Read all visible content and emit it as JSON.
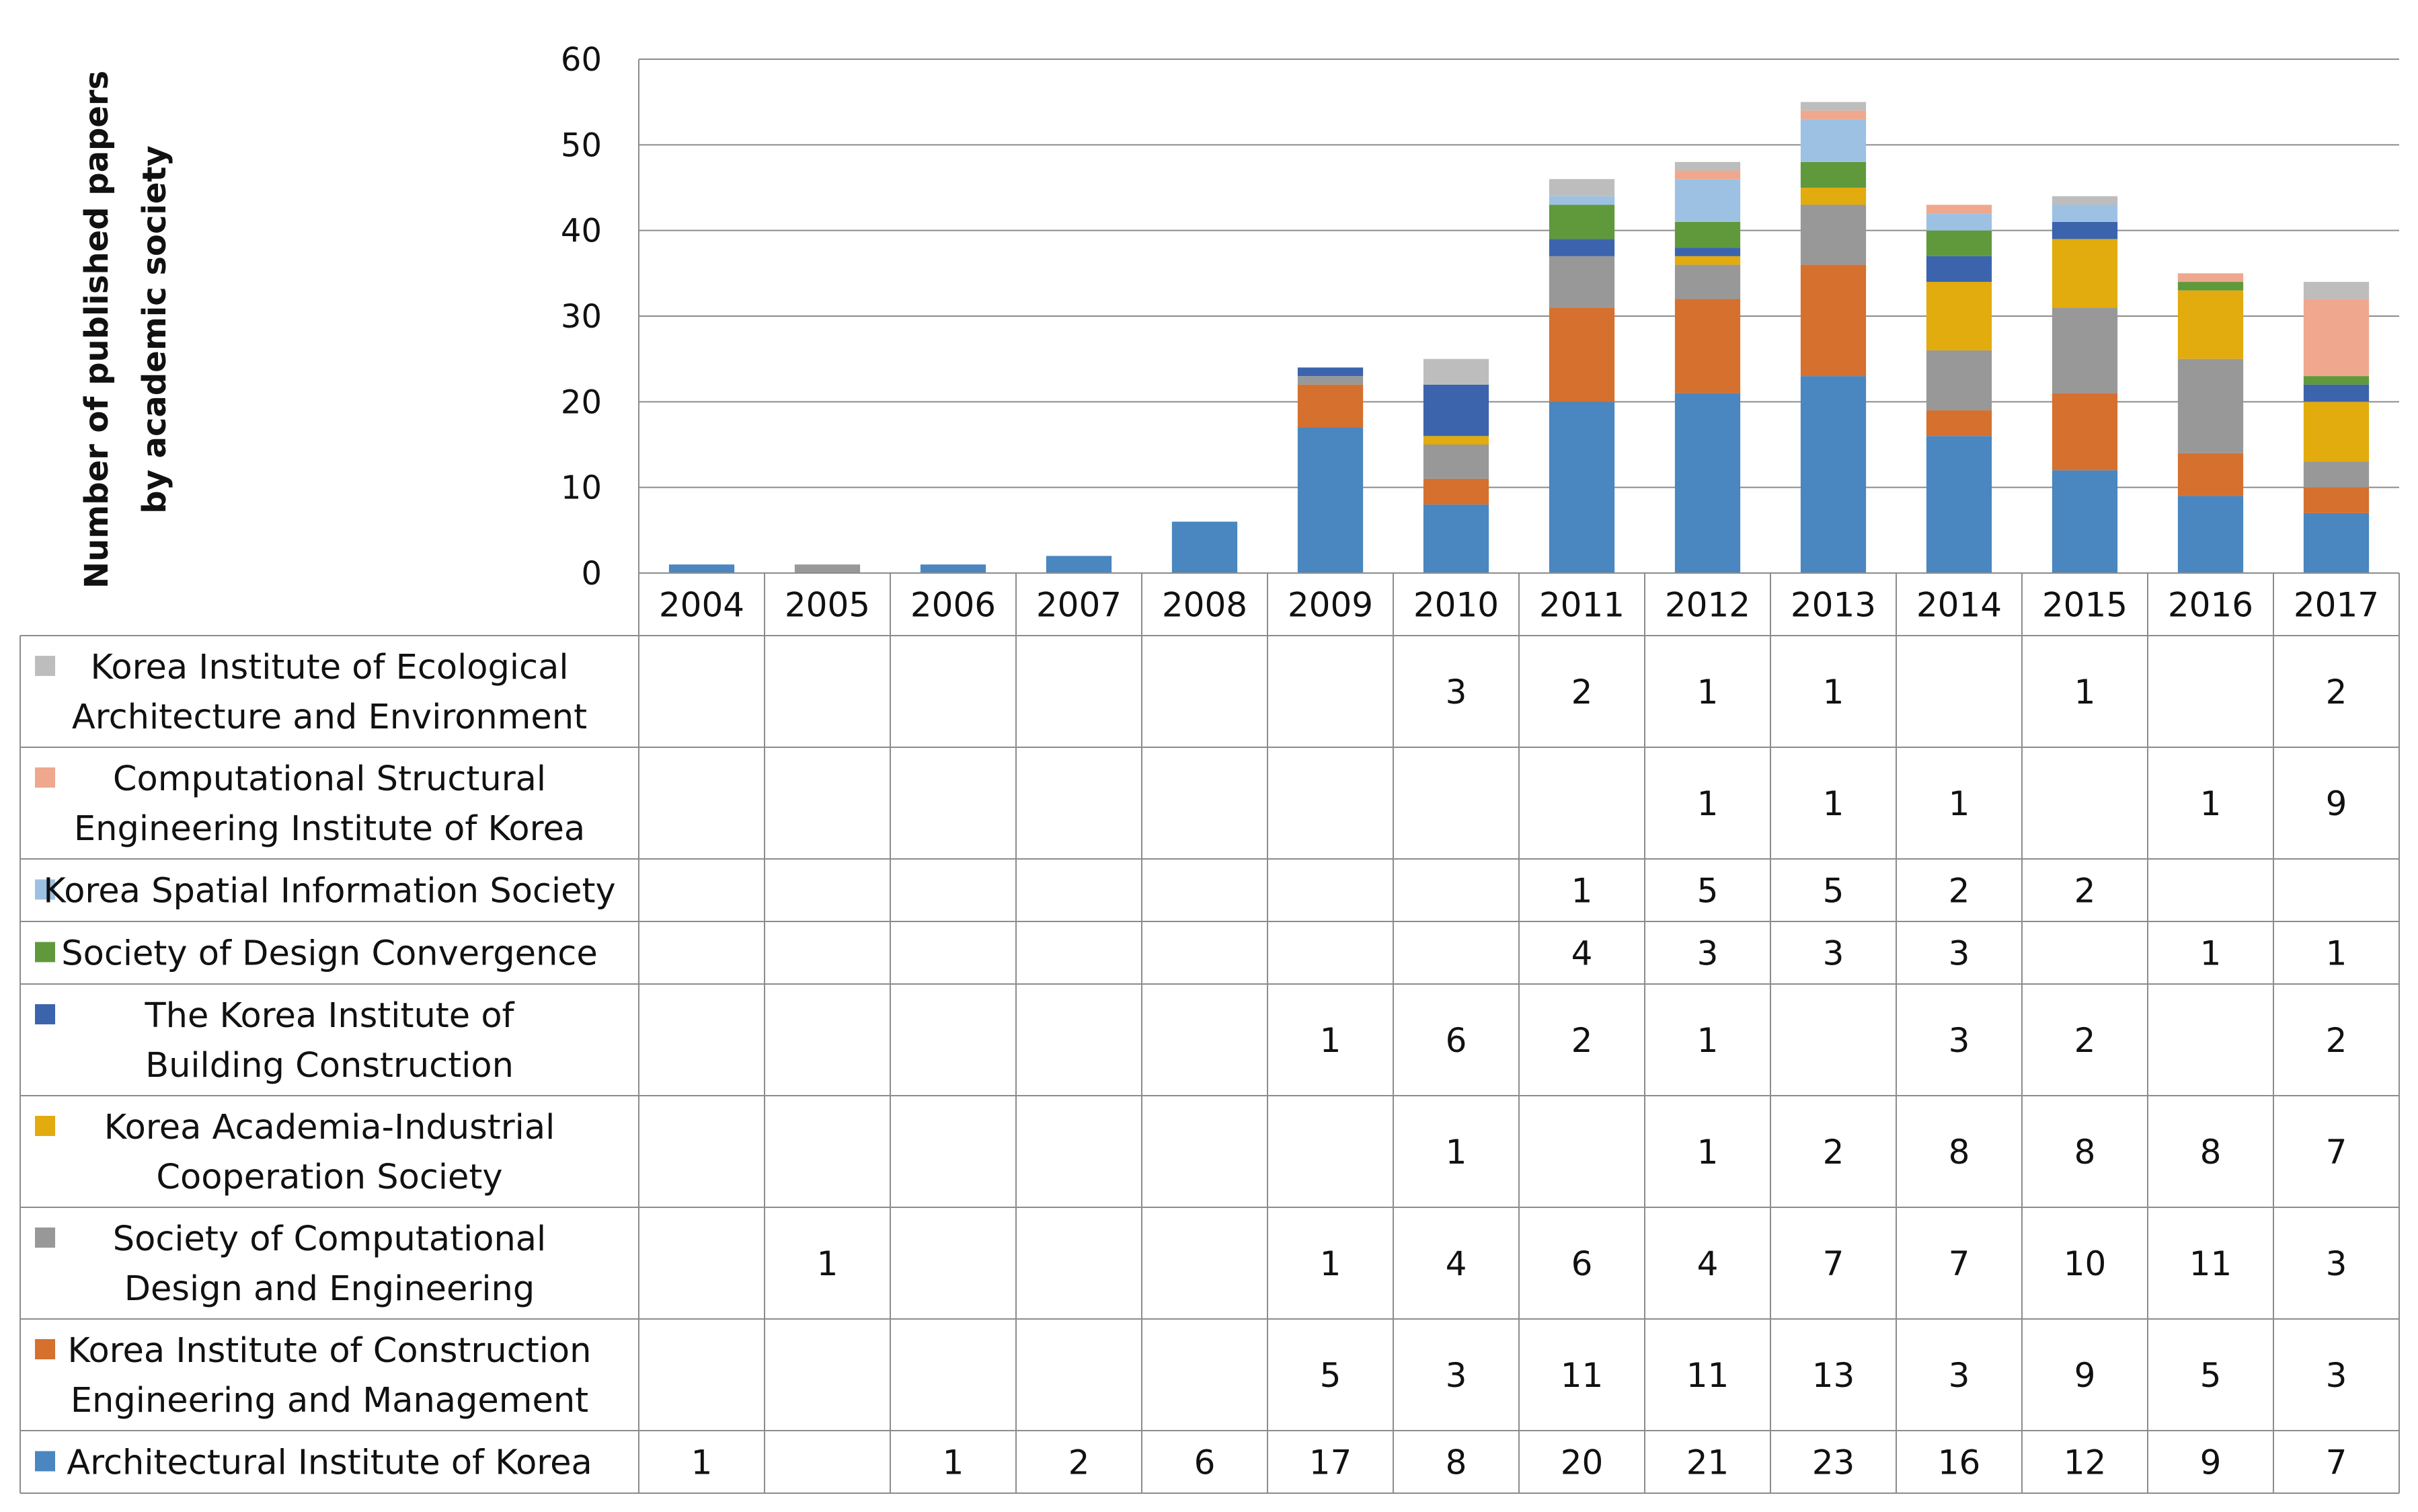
{
  "chart_data": {
    "type": "bar",
    "stacked": true,
    "title": "",
    "xlabel": "",
    "ylabel_lines": [
      "Number of published papers",
      "by academic society"
    ],
    "ylim": [
      0,
      60
    ],
    "yticks": [
      0,
      10,
      20,
      30,
      40,
      50,
      60
    ],
    "grid": true,
    "legend": "table-left",
    "categories": [
      "2004",
      "2005",
      "2006",
      "2007",
      "2008",
      "2009",
      "2010",
      "2011",
      "2012",
      "2013",
      "2014",
      "2015",
      "2016",
      "2017"
    ],
    "series": [
      {
        "name_lines": [
          "Architectural  Institute of Korea"
        ],
        "color": "#4A86BF",
        "values": [
          1,
          null,
          1,
          2,
          6,
          17,
          8,
          20,
          21,
          23,
          16,
          12,
          9,
          7
        ]
      },
      {
        "name_lines": [
          "Korea Institute of Construction",
          "Engineering and Management"
        ],
        "color": "#D5702F",
        "values": [
          null,
          null,
          null,
          null,
          null,
          5,
          3,
          11,
          11,
          13,
          3,
          9,
          5,
          3
        ]
      },
      {
        "name_lines": [
          "Society of Computational",
          "Design and Engineering"
        ],
        "color": "#989898",
        "values": [
          null,
          1,
          null,
          null,
          null,
          1,
          4,
          6,
          4,
          7,
          7,
          10,
          11,
          3
        ]
      },
      {
        "name_lines": [
          "Korea Academia-Industrial",
          "Cooperation Society"
        ],
        "color": "#E2AB0E",
        "values": [
          null,
          null,
          null,
          null,
          null,
          null,
          1,
          null,
          1,
          2,
          8,
          8,
          8,
          7
        ]
      },
      {
        "name_lines": [
          "The Korea Institute of",
          "Building Construction"
        ],
        "color": "#3B64AD",
        "values": [
          null,
          null,
          null,
          null,
          null,
          1,
          6,
          2,
          1,
          null,
          3,
          2,
          null,
          2
        ]
      },
      {
        "name_lines": [
          "Society of Design Convergence"
        ],
        "color": "#5F993C",
        "values": [
          null,
          null,
          null,
          null,
          null,
          null,
          null,
          4,
          3,
          3,
          3,
          null,
          1,
          1
        ]
      },
      {
        "name_lines": [
          "Korea Spatial Information Society"
        ],
        "color": "#9DC1E3",
        "values": [
          null,
          null,
          null,
          null,
          null,
          null,
          null,
          1,
          5,
          5,
          2,
          2,
          null,
          null
        ]
      },
      {
        "name_lines": [
          "Computational Structural",
          "Engineering Institute of Korea"
        ],
        "color": "#EFA88E",
        "values": [
          null,
          null,
          null,
          null,
          null,
          null,
          null,
          null,
          1,
          1,
          1,
          null,
          1,
          9
        ]
      },
      {
        "name_lines": [
          "Korea Institute of Ecological",
          "Architecture and Environment"
        ],
        "color": "#BDBDBD",
        "values": [
          null,
          null,
          null,
          null,
          null,
          null,
          3,
          2,
          1,
          1,
          null,
          1,
          null,
          2
        ]
      }
    ]
  }
}
